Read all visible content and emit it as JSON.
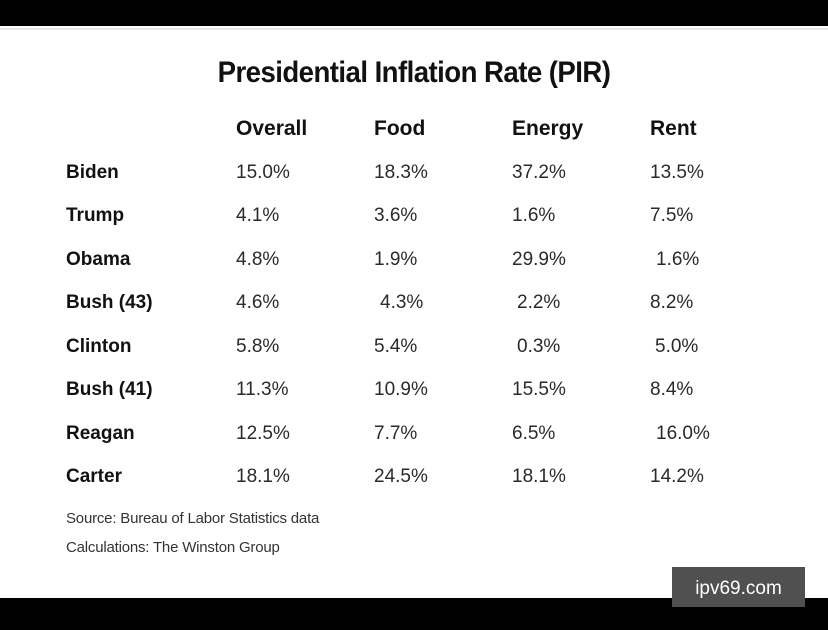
{
  "title": "Presidential Inflation Rate (PIR)",
  "watermark": "ipv69.com",
  "footnotes": {
    "source": "Source: Bureau of Labor Statistics data",
    "calculations": "Calculations: The Winston Group"
  },
  "chart_data": {
    "type": "table",
    "title": "Presidential Inflation Rate (PIR)",
    "columns": [
      "Overall",
      "Food",
      "Energy",
      "Rent"
    ],
    "rows": [
      {
        "label": "Biden",
        "values": [
          "15.0%",
          "18.3%",
          "37.2%",
          "13.5%"
        ]
      },
      {
        "label": "Trump",
        "values": [
          "4.1%",
          "3.6%",
          "1.6%",
          "7.5%"
        ]
      },
      {
        "label": "Obama",
        "values": [
          "4.8%",
          "1.9%",
          "29.9%",
          "1.6%"
        ]
      },
      {
        "label": "Bush  (43)",
        "values": [
          "4.6%",
          "4.3%",
          "2.2%",
          "8.2%"
        ]
      },
      {
        "label": "Clinton",
        "values": [
          "5.8%",
          "5.4%",
          "0.3%",
          "5.0%"
        ]
      },
      {
        "label": "Bush (41)",
        "values": [
          "11.3%",
          "10.9%",
          "15.5%",
          "8.4%"
        ]
      },
      {
        "label": "Reagan",
        "values": [
          "12.5%",
          "7.7%",
          "6.5%",
          "16.0%"
        ]
      },
      {
        "label": "Carter",
        "values": [
          "18.1%",
          "24.5%",
          "18.1%",
          "14.2%"
        ]
      }
    ],
    "source": "Source: Bureau of Labor Statistics data",
    "notes": "Calculations: The Winston Group"
  }
}
